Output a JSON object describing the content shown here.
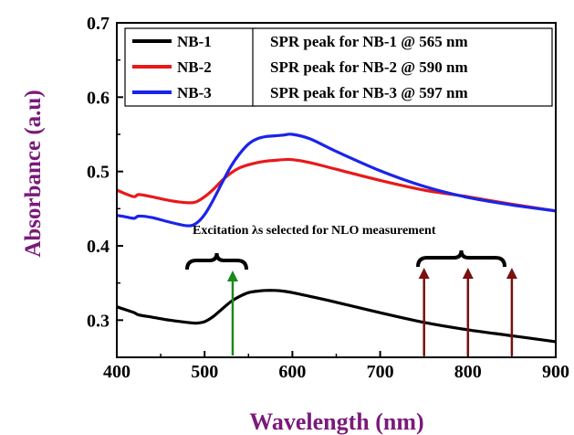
{
  "chart_data": {
    "type": "line",
    "xlabel": "Wavelength  (nm)",
    "ylabel": "Absorbance (a.u)",
    "xlim": [
      400,
      900
    ],
    "ylim": [
      0.25,
      0.7
    ],
    "x_ticks": [
      400,
      500,
      600,
      700,
      800,
      900
    ],
    "y_ticks": [
      0.3,
      0.4,
      0.5,
      0.6,
      0.7
    ],
    "x_tick_labels": [
      "400",
      "500",
      "600",
      "700",
      "800",
      "900"
    ],
    "y_tick_labels": [
      "0.3",
      "0.4",
      "0.5",
      "0.6",
      "0.7"
    ],
    "legend_position": "top-left",
    "series": [
      {
        "name": "NB-1",
        "color": "#000000",
        "x": [
          400,
          410,
          420,
          425,
          440,
          460,
          480,
          490,
          500,
          510,
          520,
          530,
          540,
          550,
          560,
          570,
          580,
          590,
          600,
          620,
          650,
          700,
          750,
          800,
          850,
          900
        ],
        "y": [
          0.318,
          0.314,
          0.31,
          0.307,
          0.304,
          0.3,
          0.297,
          0.296,
          0.298,
          0.305,
          0.315,
          0.325,
          0.332,
          0.337,
          0.339,
          0.34,
          0.34,
          0.339,
          0.337,
          0.332,
          0.324,
          0.31,
          0.297,
          0.287,
          0.279,
          0.271
        ]
      },
      {
        "name": "NB-2",
        "color": "#e8191b",
        "x": [
          400,
          410,
          420,
          425,
          440,
          460,
          480,
          490,
          500,
          510,
          520,
          530,
          540,
          550,
          560,
          570,
          580,
          590,
          600,
          620,
          650,
          700,
          750,
          800,
          850,
          900
        ],
        "y": [
          0.475,
          0.47,
          0.466,
          0.469,
          0.466,
          0.461,
          0.458,
          0.459,
          0.466,
          0.476,
          0.488,
          0.498,
          0.505,
          0.509,
          0.512,
          0.514,
          0.515,
          0.516,
          0.516,
          0.512,
          0.503,
          0.488,
          0.475,
          0.466,
          0.456,
          0.447
        ]
      },
      {
        "name": "NB-3",
        "color": "#1a24e8",
        "x": [
          400,
          410,
          420,
          425,
          440,
          460,
          480,
          490,
          500,
          510,
          520,
          530,
          540,
          550,
          560,
          570,
          580,
          590,
          600,
          620,
          650,
          700,
          750,
          800,
          850,
          900
        ],
        "y": [
          0.441,
          0.439,
          0.437,
          0.44,
          0.438,
          0.432,
          0.427,
          0.43,
          0.442,
          0.462,
          0.485,
          0.507,
          0.524,
          0.537,
          0.544,
          0.547,
          0.548,
          0.549,
          0.55,
          0.544,
          0.527,
          0.501,
          0.48,
          0.465,
          0.455,
          0.447
        ]
      }
    ],
    "notes": [
      "SPR peak for NB-1 @ 565 nm",
      "SPR peak for NB-2 @ 590 nm",
      "SPR peak for NB-3 @ 597 nm"
    ],
    "annotation": {
      "text": "Excitation λs selected for NLO measurement",
      "group1": {
        "wavelengths": [
          532
        ],
        "color": "#1a8a1a"
      },
      "group2": {
        "wavelengths": [
          750,
          800,
          850
        ],
        "color": "#7a1010"
      }
    }
  }
}
